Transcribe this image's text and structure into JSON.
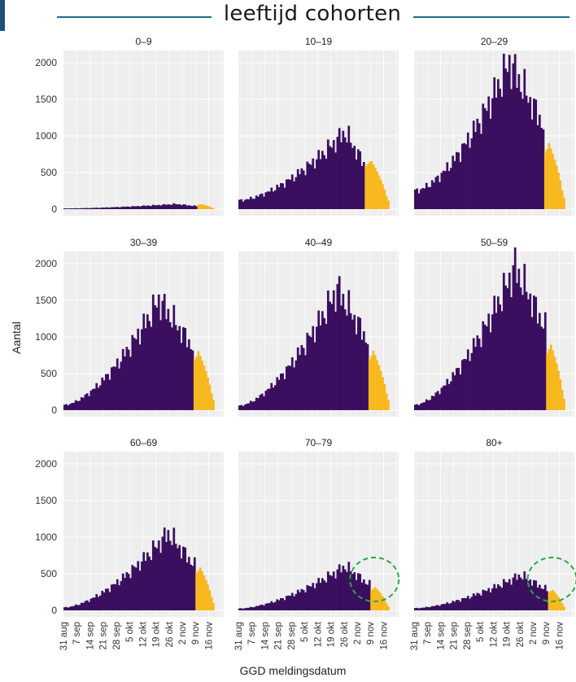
{
  "header": {
    "title": "leeftijd cohorten"
  },
  "axes": {
    "ylabel": "Aantal",
    "xlabel": "GGD meldingsdatum"
  },
  "colors": {
    "past": "#3b0f5f",
    "recent": "#f8b81f",
    "panel_bg": "#ebebeb",
    "grid": "#ffffff",
    "annotation": "#29a847"
  },
  "chart_data": {
    "type": "bar",
    "layout": "facet-grid 3x3",
    "y_ticks": [
      0,
      500,
      1000,
      1500,
      2000
    ],
    "ylim": [
      0,
      2100
    ],
    "x_ticks": [
      "31 aug",
      "7 sep",
      "14 sep",
      "21 sep",
      "28 sep",
      "5 okt",
      "12 okt",
      "19 okt",
      "26 okt",
      "2 nov",
      "9 nov",
      "16 nov"
    ],
    "x_range": [
      "31 aug",
      "22 nov"
    ],
    "grid": true,
    "series_legend": "none",
    "recent_period_start": "9 nov",
    "facets": [
      {
        "label": "0–9",
        "peak": 70,
        "peak_day": 59,
        "start": 10,
        "recent_peak": 80,
        "cutoff_day": 71,
        "end_day": 79
      },
      {
        "label": "10–19",
        "peak": 1050,
        "peak_day": 56,
        "start": 120,
        "recent_peak": 780,
        "cutoff_day": 67,
        "end_day": 79
      },
      {
        "label": "20–29",
        "peak": 2000,
        "peak_day": 50,
        "start": 250,
        "recent_peak": 1030,
        "cutoff_day": 69,
        "end_day": 79
      },
      {
        "label": "30–39",
        "peak": 1500,
        "peak_day": 50,
        "start": 70,
        "recent_peak": 920,
        "cutoff_day": 69,
        "end_day": 79
      },
      {
        "label": "40–49",
        "peak": 1650,
        "peak_day": 52,
        "start": 60,
        "recent_peak": 930,
        "cutoff_day": 69,
        "end_day": 79
      },
      {
        "label": "50–59",
        "peak": 1950,
        "peak_day": 53,
        "start": 70,
        "recent_peak": 1040,
        "cutoff_day": 70,
        "end_day": 79
      },
      {
        "label": "60–69",
        "peak": 1050,
        "peak_day": 55,
        "start": 40,
        "recent_peak": 680,
        "cutoff_day": 70,
        "end_day": 79
      },
      {
        "label": "70–79",
        "peak": 600,
        "peak_day": 56,
        "start": 25,
        "recent_peak": 370,
        "cutoff_day": 70,
        "end_day": 79,
        "annotated": true
      },
      {
        "label": "80+",
        "peak": 480,
        "peak_day": 56,
        "start": 30,
        "recent_peak": 330,
        "cutoff_day": 71,
        "end_day": 79,
        "annotated": true
      }
    ]
  }
}
